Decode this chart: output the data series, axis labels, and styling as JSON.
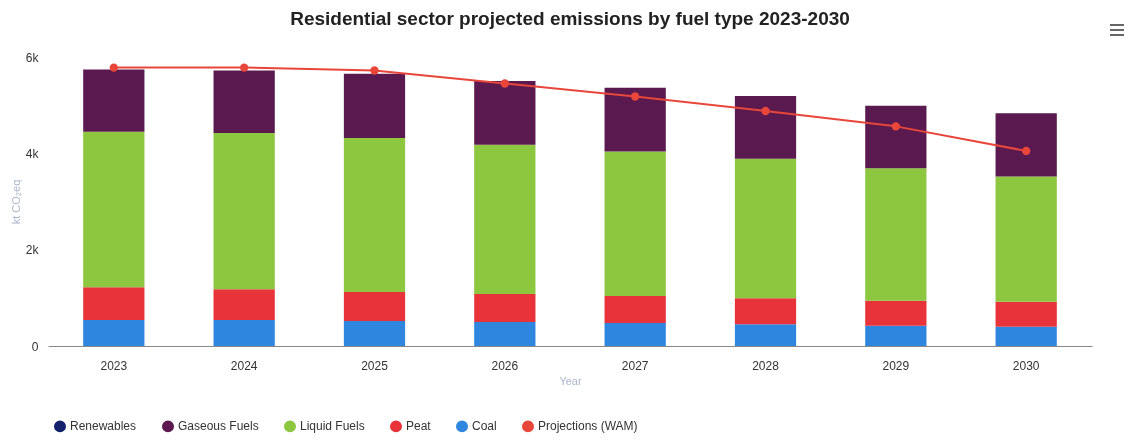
{
  "chart_data": {
    "type": "bar",
    "title": "Residential sector projected emissions by fuel type 2023-2030",
    "xlabel": "Year",
    "ylabel": "kt CO₂eq",
    "categories": [
      "2023",
      "2024",
      "2025",
      "2026",
      "2027",
      "2028",
      "2029",
      "2030"
    ],
    "stacked": true,
    "series": [
      {
        "name": "Coal",
        "color": "#2e86de",
        "values": [
          540,
          540,
          520,
          500,
          480,
          450,
          420,
          400
        ]
      },
      {
        "name": "Peat",
        "color": "#e8333a",
        "values": [
          680,
          640,
          600,
          580,
          560,
          540,
          520,
          520
        ]
      },
      {
        "name": "Liquid Fuels",
        "color": "#8dc63f",
        "values": [
          3230,
          3240,
          3200,
          3100,
          3000,
          2900,
          2750,
          2600
        ]
      },
      {
        "name": "Gaseous Fuels",
        "color": "#5b1a4f",
        "values": [
          1290,
          1300,
          1330,
          1320,
          1320,
          1300,
          1300,
          1310
        ]
      },
      {
        "name": "Renewables",
        "color": "#14216b",
        "values": [
          0,
          0,
          0,
          0,
          0,
          0,
          0,
          0
        ]
      },
      {
        "name": "Projections (WAM)",
        "type": "line",
        "marker": "circle",
        "color": "#e8463a",
        "values": [
          5780,
          5780,
          5720,
          5450,
          5180,
          4880,
          4560,
          4050
        ]
      }
    ],
    "ylim": [
      0,
      6000
    ],
    "yticks": [
      {
        "value": 0,
        "label": "0"
      },
      {
        "value": 2000,
        "label": "2k"
      },
      {
        "value": 4000,
        "label": "4k"
      },
      {
        "value": 6000,
        "label": "6k"
      }
    ],
    "grid": false,
    "legend": "bottom"
  }
}
